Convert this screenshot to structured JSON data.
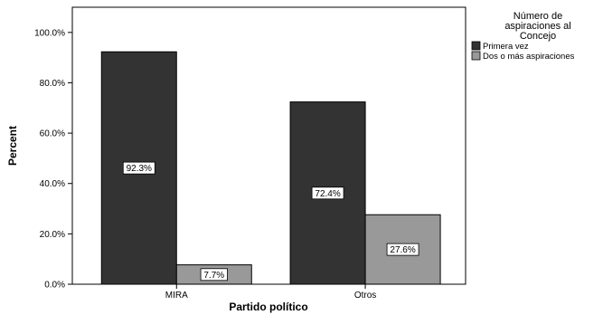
{
  "chart_data": {
    "type": "bar",
    "categories": [
      "MIRA",
      "Otros"
    ],
    "series": [
      {
        "name": "Primera vez",
        "values": [
          92.3,
          72.4
        ],
        "color": "#333333"
      },
      {
        "name": "Dos o más aspiraciones",
        "values": [
          7.7,
          27.6
        ],
        "color": "#999999"
      }
    ],
    "data_labels": [
      [
        "92.3%",
        "72.4%"
      ],
      [
        "7.7%",
        "27.6%"
      ]
    ],
    "xlabel": "Partido político",
    "ylabel": "Percent",
    "ylim": [
      0,
      110
    ],
    "yticks": [
      0,
      20,
      40,
      60,
      80,
      100
    ],
    "ytick_labels": [
      "0.0%",
      "20.0%",
      "40.0%",
      "60.0%",
      "80.0%",
      "100.0%"
    ],
    "legend": {
      "title_lines": [
        "Número de",
        "aspiraciones al",
        "Concejo"
      ],
      "position": "right"
    },
    "grid": false
  }
}
